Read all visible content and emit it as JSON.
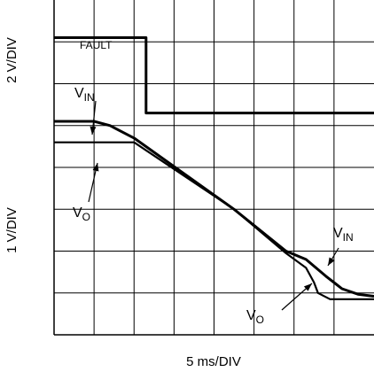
{
  "chart_data": {
    "type": "line",
    "title": "",
    "x_scale_label": "5 ms/DIV",
    "y_scale_label_top": "2 V/DIV",
    "y_scale_label_bottom": "1 V/DIV",
    "x_divisions": 8,
    "y_divisions": 8,
    "xlim_div": [
      0,
      8
    ],
    "ylim_div": [
      0,
      8
    ],
    "grid": true,
    "series": [
      {
        "name": "FAULT",
        "label": "FAULT",
        "overbar": true,
        "points": [
          [
            0,
            7.1
          ],
          [
            2.3,
            7.1
          ],
          [
            2.3,
            5.3
          ],
          [
            8,
            5.3
          ]
        ]
      },
      {
        "name": "VIN (upper trace)",
        "label": "V",
        "label_sub": "IN",
        "points": [
          [
            0,
            5.1
          ],
          [
            1.0,
            5.1
          ],
          [
            1.4,
            5.0
          ],
          [
            2.0,
            4.7
          ],
          [
            4.5,
            3.0
          ],
          [
            5.8,
            2.0
          ],
          [
            6.3,
            1.8
          ],
          [
            6.8,
            1.4
          ],
          [
            7.2,
            1.1
          ],
          [
            7.6,
            0.97
          ],
          [
            8,
            0.92
          ]
        ]
      },
      {
        "name": "VO (upper trace)",
        "label": "V",
        "label_sub": "O",
        "points": [
          [
            0,
            4.6
          ],
          [
            2.0,
            4.6
          ],
          [
            4.5,
            3.0
          ],
          [
            5.8,
            1.95
          ],
          [
            6.3,
            1.6
          ],
          [
            6.5,
            1.25
          ],
          [
            6.6,
            1.0
          ],
          [
            6.9,
            0.85
          ],
          [
            8,
            0.85
          ]
        ]
      }
    ],
    "annotations": [
      {
        "text": "FAULT",
        "overbar": true
      },
      {
        "text": "V",
        "sub": "IN"
      },
      {
        "text": "V",
        "sub": "O"
      },
      {
        "text": "V",
        "sub": "IN"
      },
      {
        "text": "V",
        "sub": "O"
      }
    ]
  }
}
